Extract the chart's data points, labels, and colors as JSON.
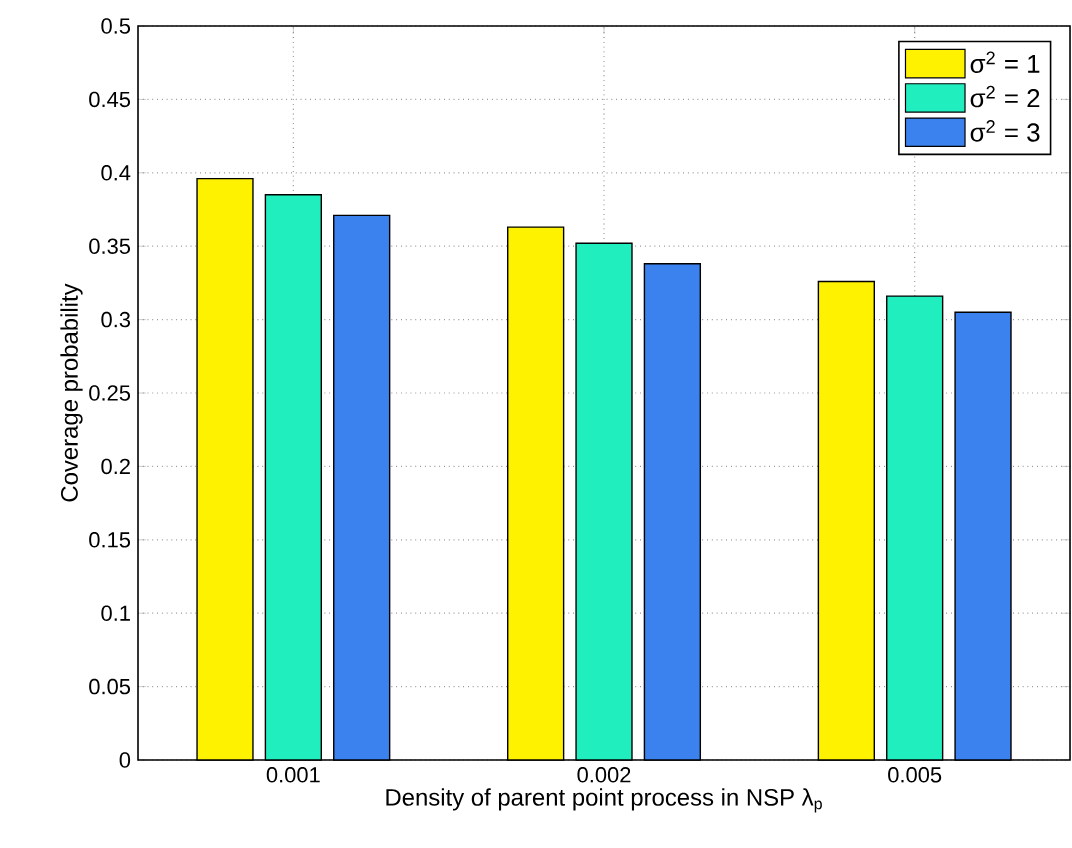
{
  "chart_data": {
    "type": "bar",
    "xlabel": "Density of parent point process in NSP λ$_{p}$",
    "ylabel": "Coverage probability",
    "categories": [
      "0.001",
      "0.002",
      "0.005"
    ],
    "series": [
      {
        "name": "σ$^{2}$ = 1",
        "color": "#fff200",
        "values": [
          0.396,
          0.363,
          0.326
        ]
      },
      {
        "name": "σ$^{2}$ = 2",
        "color": "#20eebf",
        "values": [
          0.385,
          0.352,
          0.316
        ]
      },
      {
        "name": "σ$^{2}$ = 3",
        "color": "#3b82ee",
        "values": [
          0.371,
          0.338,
          0.305
        ]
      }
    ],
    "ylim": [
      0,
      0.5
    ],
    "yticks": [
      0,
      0.05,
      0.1,
      0.15,
      0.2,
      0.25,
      0.3,
      0.35,
      0.4,
      0.45,
      0.5
    ],
    "grid": true,
    "legend": "top right"
  }
}
